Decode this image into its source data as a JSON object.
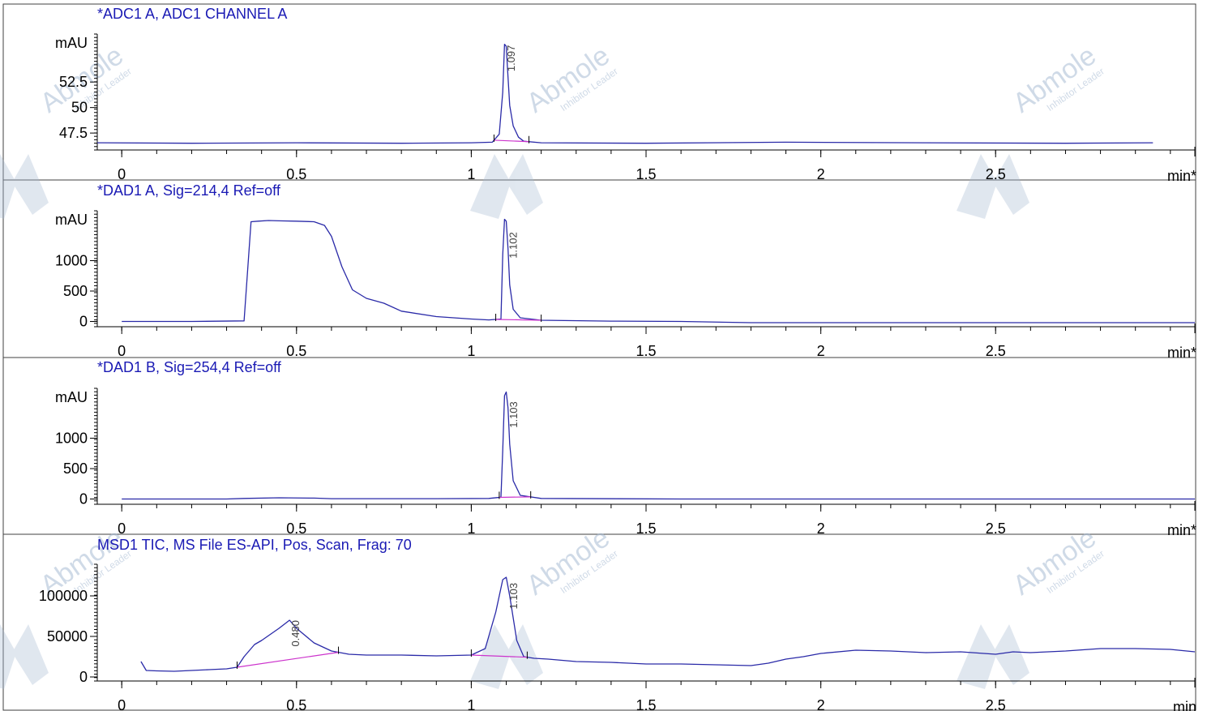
{
  "colors": {
    "signal": "#2a2aa8",
    "baseline": "#cc33cc",
    "title": "#1a1ab4",
    "axis": "#000000",
    "frame": "#404040",
    "watermark": "#a9bcd4"
  },
  "watermark": {
    "brand": "Abmole",
    "tagline": "Inhibitor Leader",
    "icon": "abmole-logo-icon"
  },
  "chart_data": [
    {
      "type": "line",
      "title": "*ADC1 A, ADC1 CHANNEL A",
      "xlabel": "min*",
      "ylabel": "mAU",
      "xlim": [
        -0.07,
        3.07
      ],
      "ylim": [
        46.0,
        57.2
      ],
      "x_ticks": [
        0,
        0.5,
        1,
        1.5,
        2,
        2.5
      ],
      "x_tick_labels": [
        "0",
        "0.5",
        "1",
        "1.5",
        "2",
        "2.5"
      ],
      "y_ticks": [
        47.5,
        50,
        52.5
      ],
      "y_tick_labels": [
        "47.5",
        "50",
        "52.5"
      ],
      "series": [
        {
          "x": [
            -0.07,
            0.2,
            0.5,
            0.8,
            1.0,
            1.06,
            1.08,
            1.09,
            1.095,
            1.1,
            1.105,
            1.11,
            1.12,
            1.135,
            1.15,
            1.2,
            1.5,
            1.9,
            2.3,
            2.7,
            2.95
          ],
          "y": [
            46.55,
            46.5,
            46.55,
            46.5,
            46.55,
            46.6,
            47.4,
            51.5,
            56.2,
            56.0,
            53.0,
            50.2,
            48.2,
            47.1,
            46.7,
            46.55,
            46.5,
            46.6,
            46.55,
            46.5,
            46.55
          ]
        }
      ],
      "peaks": [
        {
          "label": "1.097",
          "x": 1.097,
          "baseline": [
            1.065,
            1.165
          ]
        }
      ]
    },
    {
      "type": "line",
      "title": "*DAD1 A, Sig=214,4 Ref=off",
      "xlabel": "min*",
      "ylabel": "mAU",
      "xlim": [
        -0.07,
        3.07
      ],
      "ylim": [
        -60,
        1820
      ],
      "x_ticks": [
        0,
        0.5,
        1,
        1.5,
        2,
        2.5
      ],
      "x_tick_labels": [
        "0",
        "0.5",
        "1",
        "1.5",
        "2",
        "2.5"
      ],
      "y_ticks": [
        0,
        500,
        1000
      ],
      "y_tick_labels": [
        "0",
        "500",
        "1000"
      ],
      "series": [
        {
          "x": [
            0.0,
            0.2,
            0.35,
            0.37,
            0.39,
            0.42,
            0.45,
            0.5,
            0.55,
            0.58,
            0.6,
            0.63,
            0.66,
            0.7,
            0.75,
            0.8,
            0.9,
            1.0,
            1.05,
            1.085,
            1.09,
            1.095,
            1.1,
            1.105,
            1.11,
            1.12,
            1.14,
            1.2,
            1.4,
            1.6,
            1.8,
            2.2,
            2.6,
            3.07
          ],
          "y": [
            0,
            0,
            10,
            1640,
            1650,
            1660,
            1655,
            1650,
            1640,
            1580,
            1400,
            900,
            520,
            380,
            300,
            170,
            80,
            40,
            25,
            40,
            1100,
            1680,
            1650,
            1200,
            600,
            200,
            60,
            20,
            5,
            0,
            -20,
            -20,
            -20,
            -20
          ]
        }
      ],
      "peaks": [
        {
          "label": "1.102",
          "x": 1.102,
          "baseline": [
            1.07,
            1.2
          ]
        }
      ]
    },
    {
      "type": "line",
      "title": "*DAD1 B, Sig=254,4 Ref=off",
      "xlabel": "min*",
      "ylabel": "mAU",
      "xlim": [
        -0.07,
        3.07
      ],
      "ylim": [
        -60,
        1820
      ],
      "x_ticks": [
        0,
        0.5,
        1,
        1.5,
        2,
        2.5
      ],
      "x_tick_labels": [
        "0",
        "0.5",
        "1",
        "1.5",
        "2",
        "2.5"
      ],
      "y_ticks": [
        0,
        500,
        1000
      ],
      "y_tick_labels": [
        "0",
        "500",
        "1000"
      ],
      "series": [
        {
          "x": [
            0.0,
            0.3,
            0.35,
            0.45,
            0.55,
            0.6,
            0.9,
            1.05,
            1.085,
            1.09,
            1.095,
            1.1,
            1.105,
            1.11,
            1.12,
            1.14,
            1.2,
            1.6,
            2.2,
            2.8,
            3.07
          ],
          "y": [
            0,
            0,
            10,
            20,
            15,
            5,
            5,
            10,
            30,
            800,
            1700,
            1760,
            1500,
            900,
            300,
            60,
            10,
            0,
            0,
            0,
            0
          ]
        }
      ],
      "peaks": [
        {
          "label": "1.103",
          "x": 1.103,
          "baseline": [
            1.08,
            1.17
          ]
        }
      ]
    },
    {
      "type": "line",
      "title": "MSD1 TIC, MS File     ES-API, Pos, Scan, Frag: 70",
      "xlabel": "min",
      "ylabel": "",
      "xlim": [
        -0.07,
        3.07
      ],
      "ylim": [
        -3000,
        139000
      ],
      "x_ticks": [
        0,
        0.5,
        1,
        1.5,
        2,
        2.5
      ],
      "x_tick_labels": [
        "0",
        "0.5",
        "1",
        "1.5",
        "2",
        "2.5"
      ],
      "y_ticks": [
        0,
        50000,
        100000
      ],
      "y_tick_labels": [
        "0",
        "50000",
        "100000"
      ],
      "series": [
        {
          "x": [
            0.055,
            0.07,
            0.1,
            0.15,
            0.2,
            0.25,
            0.3,
            0.33,
            0.35,
            0.38,
            0.4,
            0.45,
            0.48,
            0.5,
            0.55,
            0.6,
            0.65,
            0.7,
            0.8,
            0.9,
            1.0,
            1.04,
            1.07,
            1.09,
            1.1,
            1.11,
            1.13,
            1.15,
            1.18,
            1.22,
            1.3,
            1.4,
            1.5,
            1.6,
            1.7,
            1.8,
            1.85,
            1.9,
            1.95,
            2.0,
            2.1,
            2.2,
            2.3,
            2.4,
            2.5,
            2.55,
            2.6,
            2.7,
            2.8,
            2.9,
            3.0,
            3.07
          ],
          "y": [
            19000,
            8000,
            7500,
            7000,
            8000,
            9000,
            10000,
            12000,
            25000,
            40000,
            45000,
            60000,
            70000,
            60000,
            42000,
            32000,
            28000,
            27000,
            27000,
            26000,
            27000,
            35000,
            80000,
            120000,
            123000,
            100000,
            45000,
            25000,
            23000,
            22000,
            19000,
            18000,
            16000,
            16000,
            15000,
            14000,
            17000,
            22000,
            25000,
            29000,
            33000,
            32000,
            30000,
            31000,
            28000,
            31000,
            30000,
            32000,
            35000,
            35000,
            34000,
            31000
          ]
        }
      ],
      "peaks": [
        {
          "label": "0.480",
          "x": 0.48,
          "baseline": [
            0.33,
            0.62
          ]
        },
        {
          "label": "1.103",
          "x": 1.103,
          "baseline": [
            1.0,
            1.16
          ]
        }
      ]
    }
  ]
}
